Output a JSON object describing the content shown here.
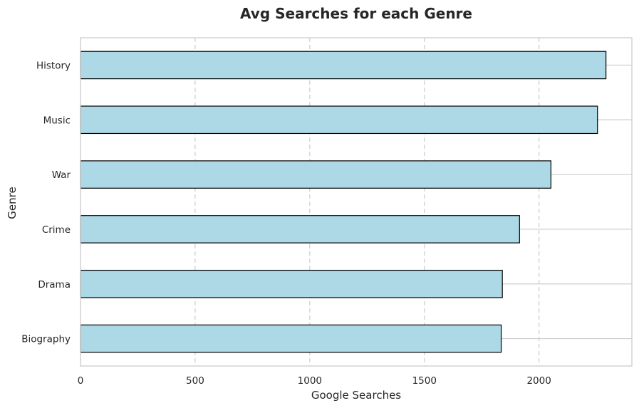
{
  "chart_data": {
    "type": "bar",
    "orientation": "horizontal",
    "title": "Avg Searches for each Genre",
    "xlabel": "Google Searches",
    "ylabel": "Genre",
    "categories": [
      "Biography",
      "Drama",
      "Crime",
      "War",
      "Music",
      "History"
    ],
    "values": [
      1835,
      1840,
      1915,
      2052,
      2255,
      2292
    ],
    "xlim": [
      0,
      2405
    ],
    "xticks": [
      0,
      500,
      1000,
      1500,
      2000
    ],
    "grid": {
      "x": "dashed",
      "y": "solid"
    },
    "colors": {
      "bar_fill": "#add8e6",
      "bar_edge": "#000000",
      "grid": "#cccccc",
      "frame": "#cccccc",
      "text": "#262626"
    }
  }
}
